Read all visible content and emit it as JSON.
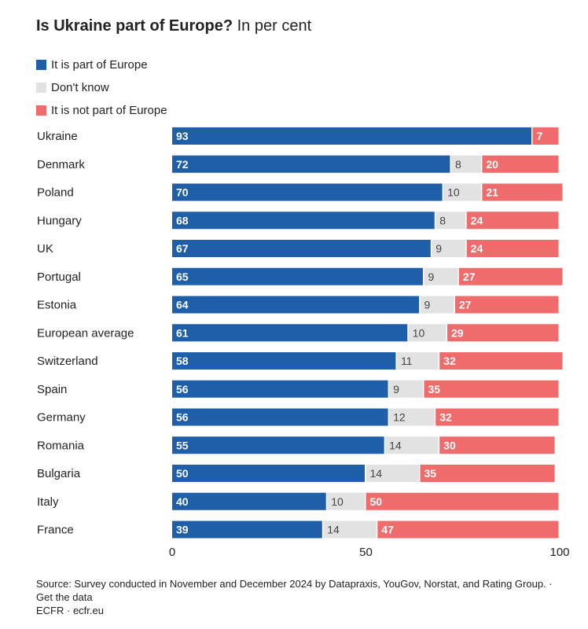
{
  "header": {
    "title": "Is Ukraine part of Europe?",
    "subtitle": "In per cent"
  },
  "legend": [
    {
      "label": "It is part of Europe",
      "color": "#1f5fa9"
    },
    {
      "label": "Don't know",
      "color": "#e2e2e2"
    },
    {
      "label": "It is not part of Europe",
      "color": "#f06b6b"
    }
  ],
  "chart_data": {
    "type": "bar",
    "orientation": "horizontal",
    "stacked": true,
    "xlim": [
      0,
      100
    ],
    "xticks": [
      0,
      50,
      100
    ],
    "categories": [
      "Ukraine",
      "Denmark",
      "Poland",
      "Hungary",
      "UK",
      "Portugal",
      "Estonia",
      "European average",
      "Switzerland",
      "Spain",
      "Germany",
      "Romania",
      "Bulgaria",
      "Italy",
      "France"
    ],
    "series": [
      {
        "name": "It is part of Europe",
        "color": "#1f5fa9",
        "values": [
          93,
          72,
          70,
          68,
          67,
          65,
          64,
          61,
          58,
          56,
          56,
          55,
          50,
          40,
          39
        ]
      },
      {
        "name": "Don't know",
        "color": "#e2e2e2",
        "values": [
          null,
          8,
          10,
          8,
          9,
          9,
          9,
          10,
          11,
          9,
          12,
          14,
          14,
          10,
          14
        ]
      },
      {
        "name": "It is not part of Europe",
        "color": "#f06b6b",
        "values": [
          7,
          20,
          21,
          24,
          24,
          27,
          27,
          29,
          32,
          35,
          32,
          30,
          35,
          50,
          47
        ]
      }
    ],
    "grid": false,
    "legend_position": "top-left"
  },
  "footer": {
    "source": "Source: Survey conducted in November and December 2024 by Datapraxis, YouGov, Norstat, and Rating Group.",
    "separator": " · ",
    "data_link": "Get the data",
    "credit": "ECFR · ecfr.eu"
  }
}
